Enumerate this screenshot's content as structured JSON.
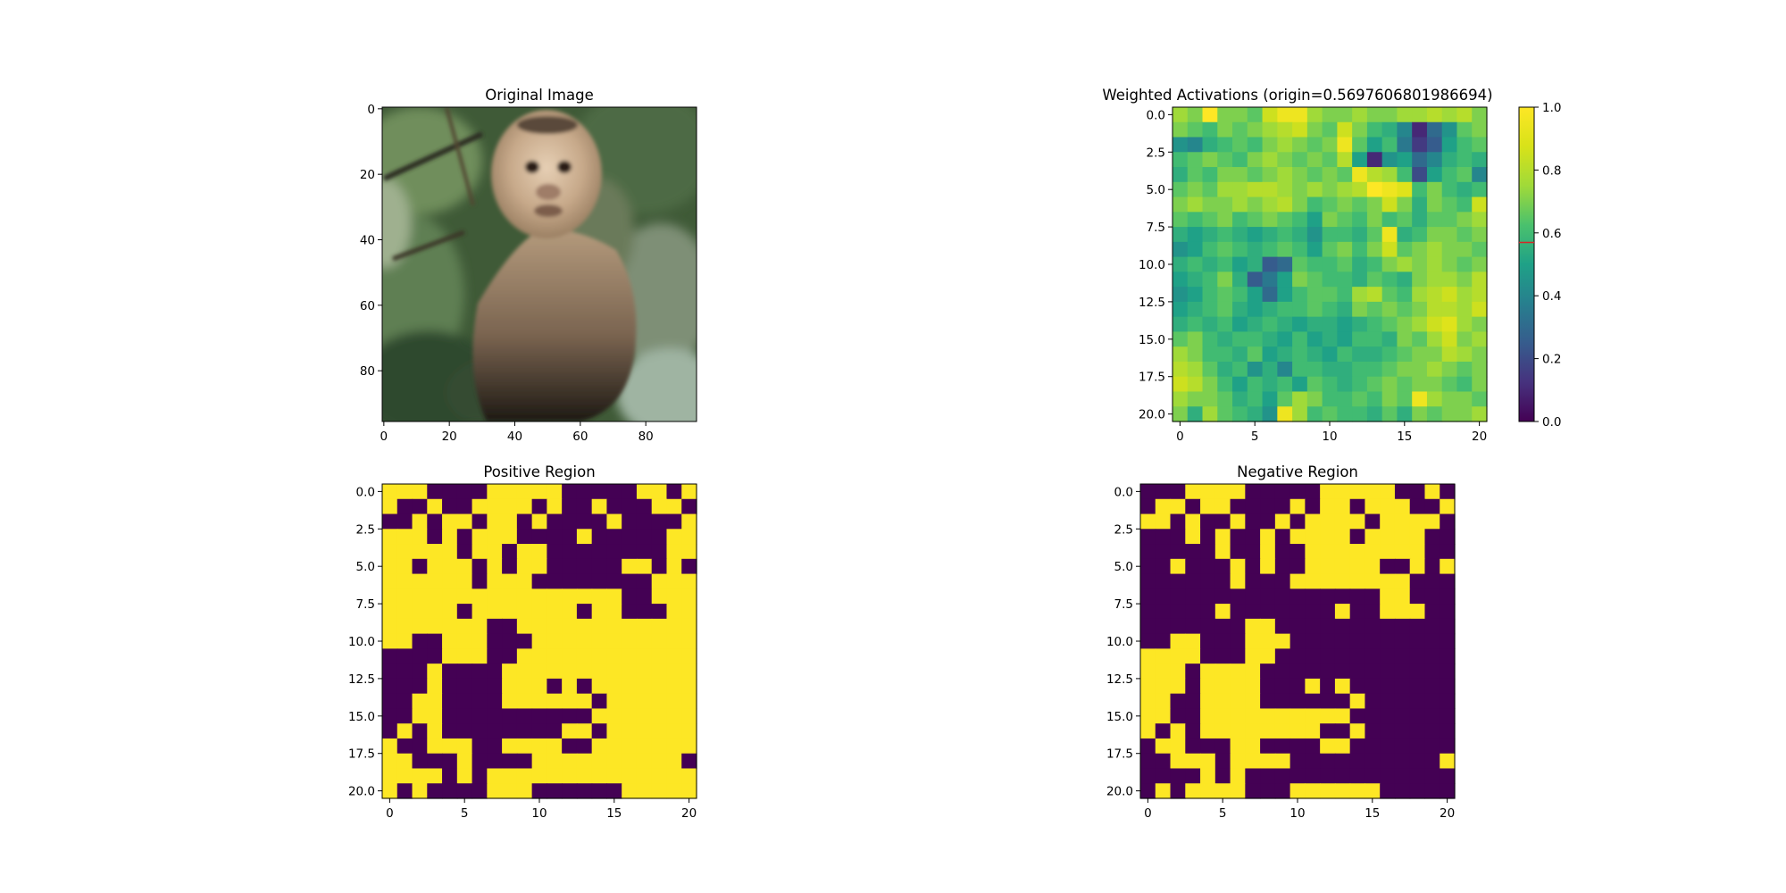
{
  "chart_data": [
    {
      "type": "image",
      "title": "Original Image",
      "image_size": [
        96,
        96
      ],
      "xticks": [
        0,
        20,
        40,
        60,
        80
      ],
      "yticks": [
        0,
        20,
        40,
        60,
        80
      ],
      "xtick_labels": [
        "0",
        "20",
        "40",
        "60",
        "80"
      ],
      "ytick_labels": [
        "0",
        "20",
        "40",
        "60",
        "80"
      ],
      "content": "photograph of a capuchin monkey in green foliage"
    },
    {
      "type": "heatmap",
      "title": "Weighted Activations (origin=0.5697606801986694)",
      "colormap": "viridis",
      "colorbar": {
        "range": [
          0,
          1
        ],
        "ticks": [
          "0.0",
          "0.2",
          "0.4",
          "0.6",
          "0.8",
          "1.0"
        ],
        "marker_value": 0.5697606801986694,
        "marker_color": "#d62728"
      },
      "xtick_labels": [
        "0",
        "5",
        "10",
        "15",
        "20"
      ],
      "ytick_labels": [
        "0.0",
        "2.5",
        "5.0",
        "7.5",
        "10.0",
        "12.5",
        "15.0",
        "17.5",
        "20.0"
      ],
      "values": [
        [
          0.75,
          0.7,
          1.0,
          0.7,
          0.7,
          0.65,
          0.85,
          0.95,
          0.95,
          0.75,
          0.7,
          0.7,
          0.75,
          0.7,
          0.7,
          0.75,
          0.75,
          0.8,
          0.75,
          0.8,
          0.7
        ],
        [
          0.7,
          0.65,
          0.6,
          0.7,
          0.65,
          0.7,
          0.75,
          0.8,
          0.85,
          0.7,
          0.65,
          0.85,
          0.7,
          0.6,
          0.55,
          0.4,
          0.1,
          0.3,
          0.45,
          0.65,
          0.7
        ],
        [
          0.45,
          0.4,
          0.55,
          0.6,
          0.65,
          0.6,
          0.7,
          0.75,
          0.7,
          0.65,
          0.7,
          0.95,
          0.65,
          0.5,
          0.6,
          0.35,
          0.15,
          0.25,
          0.5,
          0.6,
          0.65
        ],
        [
          0.6,
          0.65,
          0.7,
          0.65,
          0.6,
          0.7,
          0.75,
          0.7,
          0.65,
          0.7,
          0.65,
          0.8,
          0.5,
          0.1,
          0.45,
          0.5,
          0.3,
          0.4,
          0.55,
          0.6,
          0.55
        ],
        [
          0.55,
          0.65,
          0.6,
          0.7,
          0.7,
          0.65,
          0.7,
          0.75,
          0.7,
          0.65,
          0.7,
          0.65,
          0.95,
          0.8,
          0.75,
          0.6,
          0.2,
          0.5,
          0.6,
          0.65,
          0.4
        ],
        [
          0.65,
          0.7,
          0.65,
          0.75,
          0.75,
          0.8,
          0.8,
          0.75,
          0.7,
          0.75,
          0.7,
          0.75,
          0.8,
          1.0,
          0.95,
          0.9,
          0.6,
          0.7,
          0.6,
          0.55,
          0.6
        ],
        [
          0.7,
          0.75,
          0.7,
          0.7,
          0.75,
          0.7,
          0.75,
          0.8,
          0.7,
          0.6,
          0.65,
          0.7,
          0.65,
          0.7,
          0.85,
          0.7,
          0.55,
          0.7,
          0.65,
          0.6,
          0.85
        ],
        [
          0.65,
          0.6,
          0.65,
          0.7,
          0.6,
          0.65,
          0.7,
          0.65,
          0.6,
          0.5,
          0.7,
          0.65,
          0.6,
          0.7,
          0.6,
          0.65,
          0.55,
          0.65,
          0.65,
          0.7,
          0.75
        ],
        [
          0.55,
          0.5,
          0.55,
          0.6,
          0.55,
          0.5,
          0.55,
          0.6,
          0.55,
          0.45,
          0.6,
          0.6,
          0.55,
          0.65,
          0.95,
          0.55,
          0.6,
          0.7,
          0.7,
          0.65,
          0.7
        ],
        [
          0.45,
          0.5,
          0.6,
          0.65,
          0.6,
          0.55,
          0.6,
          0.65,
          0.6,
          0.5,
          0.65,
          0.7,
          0.6,
          0.7,
          0.85,
          0.65,
          0.7,
          0.75,
          0.7,
          0.7,
          0.65
        ],
        [
          0.55,
          0.6,
          0.55,
          0.6,
          0.5,
          0.55,
          0.25,
          0.3,
          0.65,
          0.6,
          0.6,
          0.65,
          0.55,
          0.6,
          0.7,
          0.75,
          0.7,
          0.75,
          0.7,
          0.65,
          0.7
        ],
        [
          0.5,
          0.55,
          0.6,
          0.7,
          0.55,
          0.25,
          0.35,
          0.5,
          0.7,
          0.65,
          0.6,
          0.6,
          0.55,
          0.65,
          0.6,
          0.55,
          0.7,
          0.75,
          0.75,
          0.7,
          0.8
        ],
        [
          0.45,
          0.5,
          0.6,
          0.65,
          0.6,
          0.5,
          0.3,
          0.5,
          0.6,
          0.65,
          0.65,
          0.6,
          0.75,
          0.8,
          0.65,
          0.6,
          0.75,
          0.8,
          0.85,
          0.75,
          0.8
        ],
        [
          0.5,
          0.55,
          0.6,
          0.65,
          0.55,
          0.5,
          0.55,
          0.6,
          0.6,
          0.65,
          0.6,
          0.55,
          0.7,
          0.65,
          0.7,
          0.65,
          0.7,
          0.8,
          0.8,
          0.75,
          0.85
        ],
        [
          0.55,
          0.6,
          0.55,
          0.6,
          0.5,
          0.55,
          0.6,
          0.55,
          0.5,
          0.55,
          0.55,
          0.5,
          0.55,
          0.6,
          0.65,
          0.7,
          0.75,
          0.85,
          0.9,
          0.75,
          0.7
        ],
        [
          0.65,
          0.7,
          0.6,
          0.55,
          0.6,
          0.6,
          0.55,
          0.5,
          0.6,
          0.5,
          0.55,
          0.5,
          0.6,
          0.6,
          0.55,
          0.7,
          0.65,
          0.75,
          0.85,
          0.7,
          0.75
        ],
        [
          0.75,
          0.7,
          0.6,
          0.6,
          0.55,
          0.65,
          0.5,
          0.55,
          0.6,
          0.55,
          0.5,
          0.6,
          0.55,
          0.55,
          0.6,
          0.65,
          0.7,
          0.7,
          0.8,
          0.75,
          0.7
        ],
        [
          0.8,
          0.75,
          0.65,
          0.55,
          0.6,
          0.45,
          0.55,
          0.4,
          0.6,
          0.6,
          0.55,
          0.55,
          0.6,
          0.6,
          0.65,
          0.7,
          0.7,
          0.75,
          0.7,
          0.65,
          0.7
        ],
        [
          0.85,
          0.8,
          0.7,
          0.6,
          0.5,
          0.6,
          0.55,
          0.6,
          0.5,
          0.65,
          0.6,
          0.55,
          0.6,
          0.65,
          0.7,
          0.65,
          0.7,
          0.7,
          0.65,
          0.6,
          0.7
        ],
        [
          0.75,
          0.7,
          0.7,
          0.65,
          0.55,
          0.6,
          0.5,
          0.65,
          0.75,
          0.7,
          0.6,
          0.6,
          0.65,
          0.6,
          0.7,
          0.65,
          0.95,
          0.75,
          0.7,
          0.7,
          0.65
        ],
        [
          0.7,
          0.55,
          0.75,
          0.65,
          0.6,
          0.55,
          0.45,
          0.95,
          0.75,
          0.6,
          0.65,
          0.6,
          0.6,
          0.55,
          0.65,
          0.55,
          0.7,
          0.65,
          0.7,
          0.7,
          0.75
        ]
      ]
    },
    {
      "type": "heatmap",
      "title": "Positive Region",
      "colormap": "binary-viridis",
      "xtick_labels": [
        "0",
        "5",
        "10",
        "15",
        "20"
      ],
      "ytick_labels": [
        "0.0",
        "2.5",
        "5.0",
        "7.5",
        "10.0",
        "12.5",
        "15.0",
        "17.5",
        "20.0"
      ],
      "values": [
        "111000011111000001101",
        "100100111101001000110",
        "001011011010000100001",
        "111010111000010000011",
        "111110110110000000011",
        "110111010110000011010",
        "111111011100000000111",
        "111111111111111100111",
        "111110111111101100011",
        "111111100111111111111",
        "110011100011111111111",
        "000011100111111111111",
        "000100001111111111111",
        "000100001110101111111",
        "001100001111110111111",
        "001100000000001111111",
        "010100000000110111111",
        "100111001111001111111",
        "110001000011111111110",
        "111101011111111111111",
        "101000011100000011111"
      ]
    },
    {
      "type": "heatmap",
      "title": "Negative Region",
      "colormap": "binary-viridis",
      "xtick_labels": [
        "0",
        "5",
        "10",
        "15",
        "20"
      ],
      "ytick_labels": [
        "0.0",
        "2.5",
        "5.0",
        "7.5",
        "10.0",
        "12.5",
        "15.0",
        "17.5",
        "20.0"
      ],
      "values": [
        "000111100000111110010",
        "011011000010110111001",
        "110100100101111011110",
        "000101001011110111100",
        "000001001001111111100",
        "001000101001111100101",
        "000000100011111111000",
        "000000000000000011000",
        "000001000000010011100",
        "000000011000000000000",
        "001100011100000000000",
        "111100011000000000000",
        "111011110000000000000",
        "111011110001010000000",
        "110011110000001000000",
        "110011111111110000000",
        "101011111111001000000",
        "011000110000110000000",
        "001110111100000000001",
        "000010100000000000000",
        "010111100011111100000"
      ]
    }
  ]
}
